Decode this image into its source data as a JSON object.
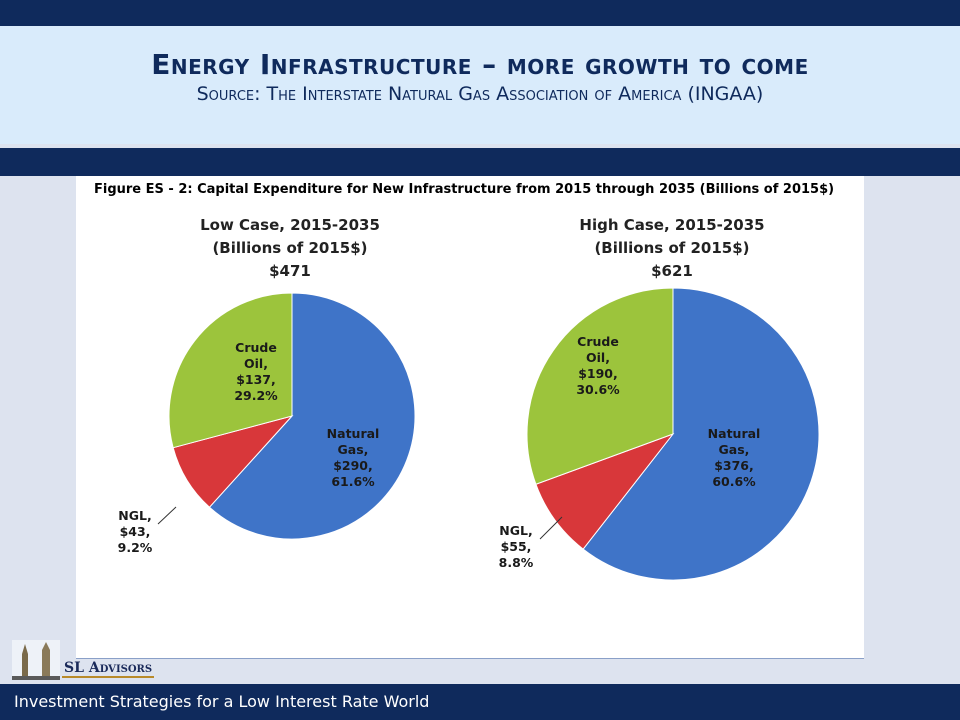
{
  "slide": {
    "title": "Energy Infrastructure – more growth to come",
    "subtitle": "Source: The Interstate Natural Gas Association of America  (INGAA)",
    "footer": "Investment Strategies for a Low Interest Rate World",
    "logo_text": "SL Advisors"
  },
  "colors": {
    "natural_gas": "#3f74c8",
    "crude_oil": "#9cc43c",
    "ngl": "#d8373a",
    "navy": "#0f2a5c"
  },
  "chart_data": [
    {
      "type": "pie",
      "title": "Figure ES - 2: Capital Expenditure for New Infrastructure from 2015 through 2035 (Billions of 2015$)",
      "case_title": "Low Case, 2015-2035",
      "case_unit": "(Billions of 2015$)",
      "case_total": "$471",
      "slices": [
        {
          "name": "Natural Gas",
          "value": 290,
          "percent": 61.6,
          "label_lines": [
            "Natural",
            "Gas,",
            "$290,",
            "61.6%"
          ]
        },
        {
          "name": "NGL",
          "value": 43,
          "percent": 9.2,
          "label_lines": [
            "NGL,",
            "$43,",
            "9.2%"
          ]
        },
        {
          "name": "Crude Oil",
          "value": 137,
          "percent": 29.2,
          "label_lines": [
            "Crude",
            "Oil,",
            "$137,",
            "29.2%"
          ]
        }
      ]
    },
    {
      "type": "pie",
      "case_title": "High Case, 2015-2035",
      "case_unit": "(Billions of 2015$)",
      "case_total": "$621",
      "slices": [
        {
          "name": "Natural Gas",
          "value": 376,
          "percent": 60.6,
          "label_lines": [
            "Natural",
            "Gas,",
            "$376,",
            "60.6%"
          ]
        },
        {
          "name": "NGL",
          "value": 55,
          "percent": 8.8,
          "label_lines": [
            "NGL,",
            "$55,",
            "8.8%"
          ]
        },
        {
          "name": "Crude Oil",
          "value": 190,
          "percent": 30.6,
          "label_lines": [
            "Crude",
            "Oil,",
            "$190,",
            "30.6%"
          ]
        }
      ]
    }
  ]
}
